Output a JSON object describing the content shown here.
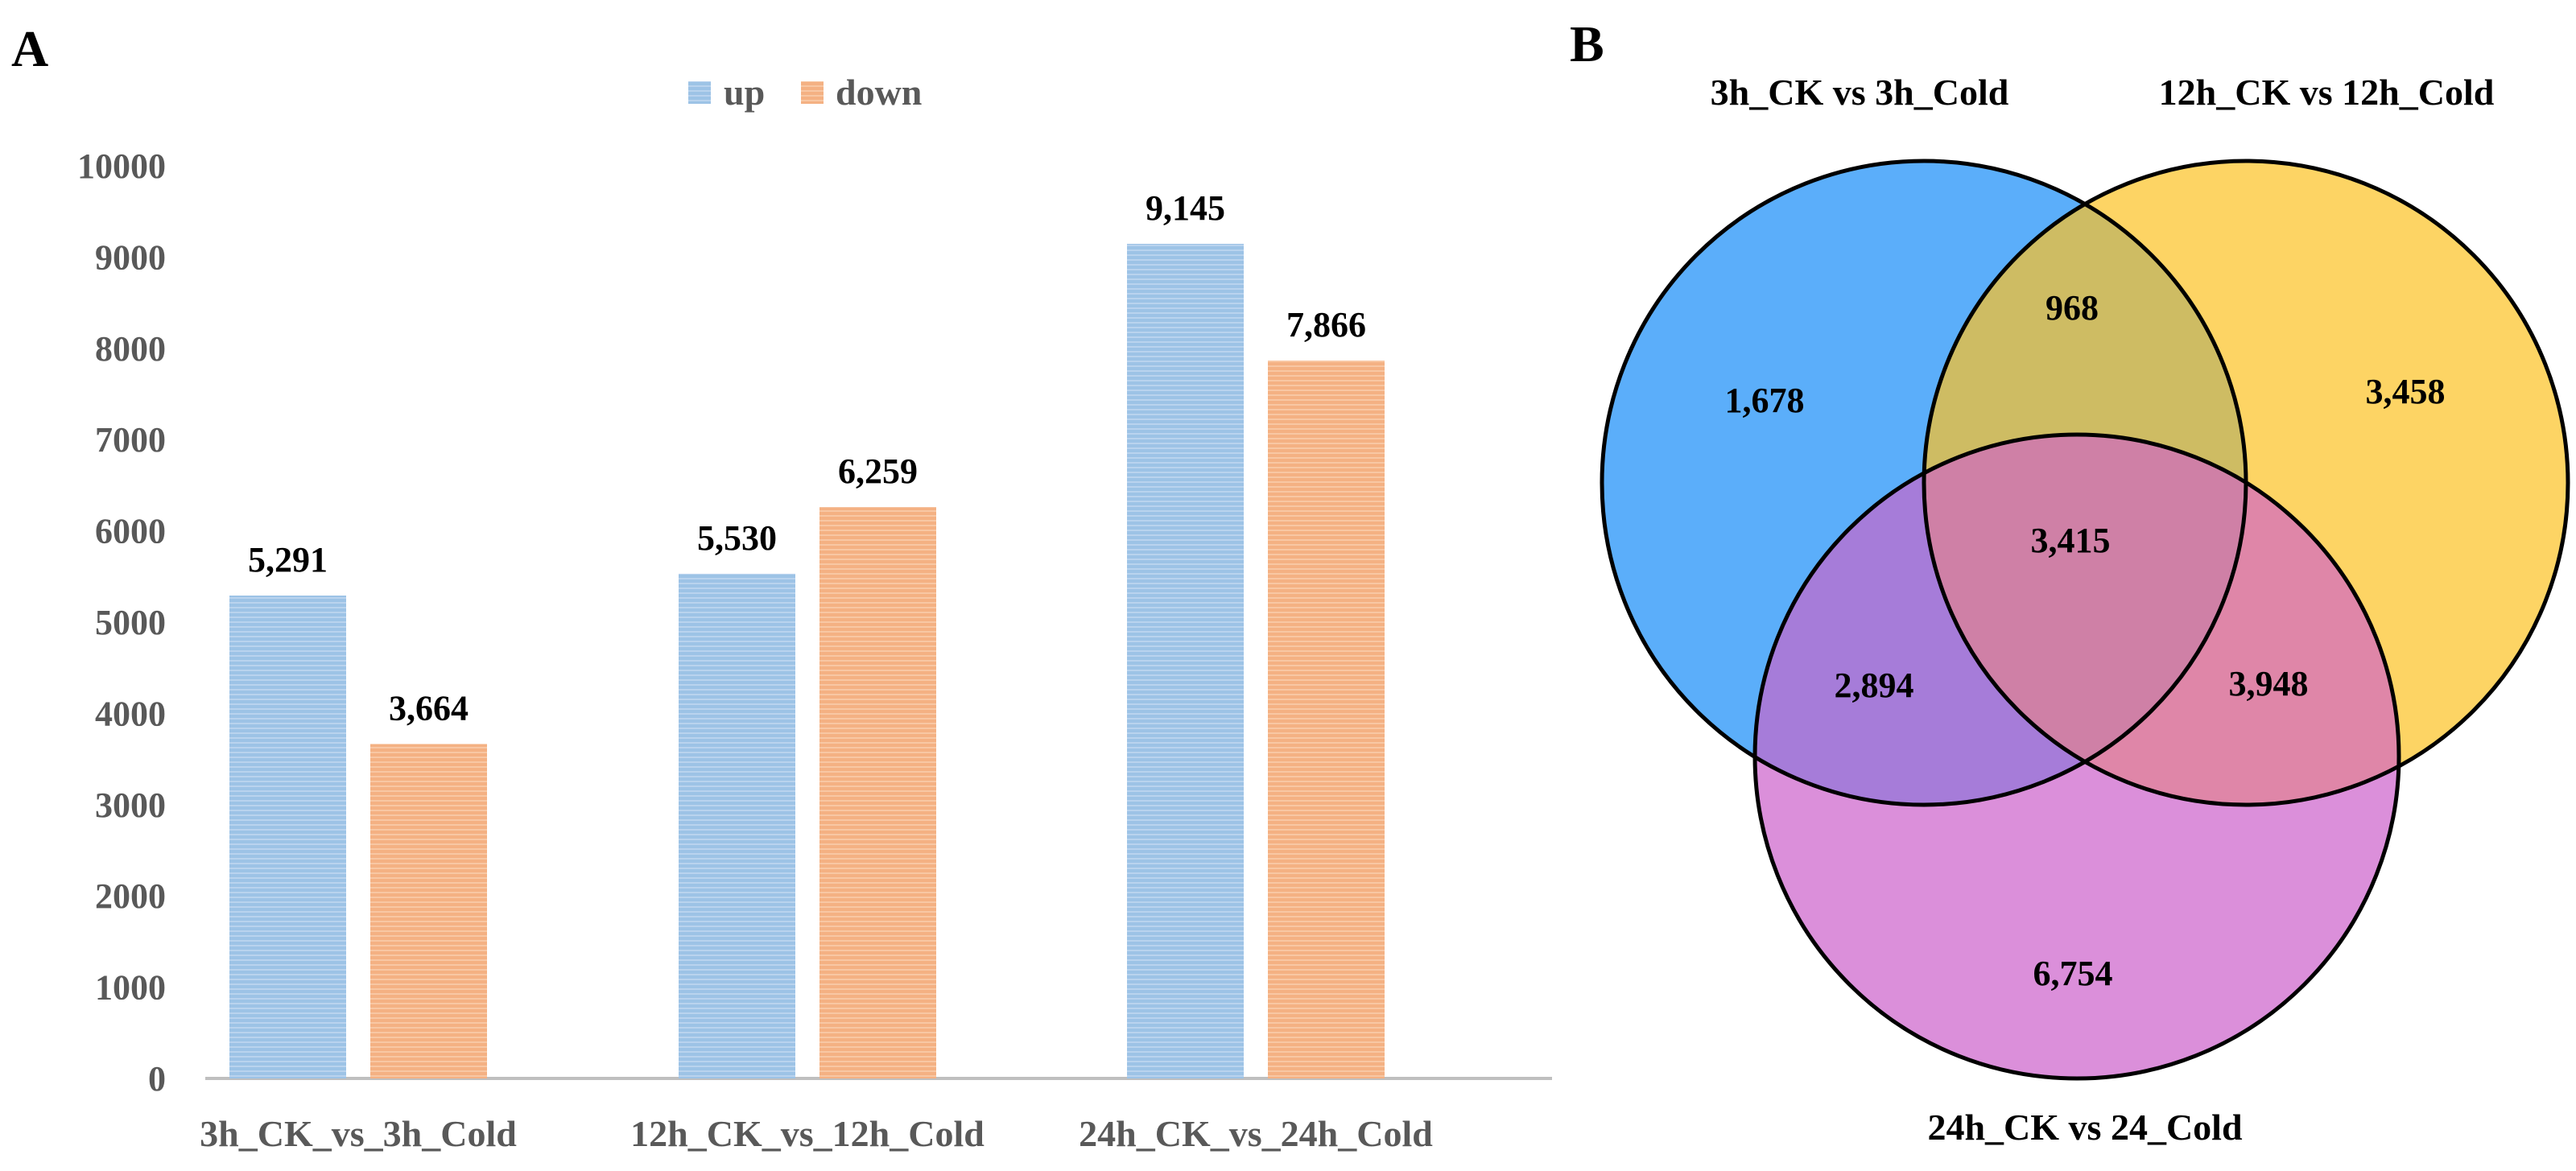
{
  "panel_a_label": "A",
  "panel_b_label": "B",
  "chart_data": [
    {
      "type": "bar",
      "panel": "A",
      "categories": [
        "3h_CK_vs_3h_Cold",
        "12h_CK_vs_12h_Cold",
        "24h_CK_vs_24h_Cold"
      ],
      "series": [
        {
          "name": "up",
          "values": [
            5291,
            5530,
            9145
          ],
          "labels": [
            "5,291",
            "5,530",
            "9,145"
          ],
          "color": "#9DC3E6"
        },
        {
          "name": "down",
          "values": [
            3664,
            6259,
            7866
          ],
          "labels": [
            "3,664",
            "6,259",
            "7,866"
          ],
          "color": "#F4B183"
        }
      ],
      "yticks": [
        "0",
        "1000",
        "2000",
        "3000",
        "4000",
        "5000",
        "6000",
        "7000",
        "8000",
        "9000",
        "10000"
      ],
      "ylim": [
        0,
        10000
      ],
      "legend_position": "top-center",
      "grid": false
    },
    {
      "type": "venn",
      "panel": "B",
      "sets": [
        {
          "name": "3h_CK vs 3h_Cold",
          "color": "#5BAEFA"
        },
        {
          "name": "12h_CK vs 12h_Cold",
          "color": "#FDD464"
        },
        {
          "name": "24h_CK vs 24_Cold",
          "color": "#DB8FDA"
        }
      ],
      "regions": {
        "only_3h": "1,678",
        "only_12h": "3,458",
        "only_24h": "6,754",
        "3h_12h": "968",
        "3h_24h": "2,894",
        "12h_24h": "3,948",
        "all_three": "3,415"
      },
      "region_colors": {
        "3h_12h": "#CEBC63",
        "3h_24h": "#A67CD9",
        "12h_24h": "#DF86A8",
        "all_three": "#CF80A6"
      }
    }
  ]
}
